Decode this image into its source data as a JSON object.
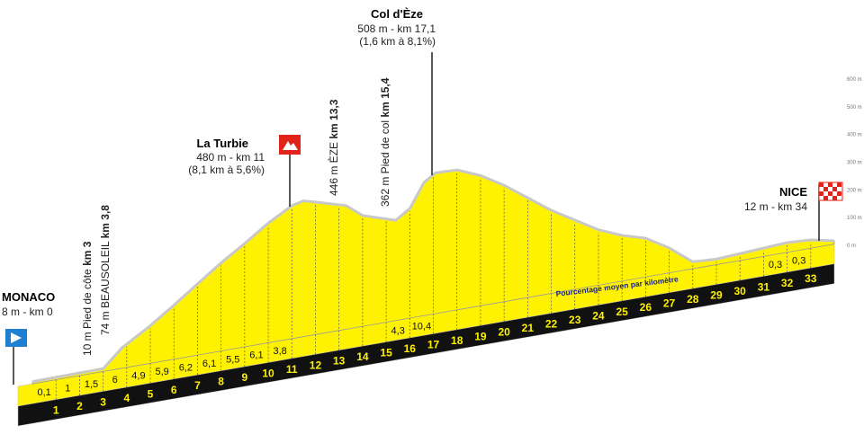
{
  "chart_data": {
    "type": "profile",
    "elevation": {
      "x": [
        0,
        1,
        2,
        3,
        3.8,
        5,
        6,
        7,
        8,
        9,
        10,
        11,
        11.5,
        12,
        13.3,
        14,
        15.4,
        16,
        16.6,
        17.1,
        18,
        19,
        20,
        21,
        22,
        23,
        24,
        25,
        26,
        27,
        28,
        29,
        30,
        31,
        32,
        33,
        34
      ],
      "values": [
        8,
        9,
        10,
        10,
        74,
        136,
        195,
        257,
        318,
        373,
        432,
        480,
        490,
        478,
        446,
        400,
        362,
        395,
        480,
        508,
        505,
        470,
        420,
        360,
        300,
        250,
        200,
        165,
        140,
        90,
        25,
        20,
        25,
        30,
        35,
        30,
        12
      ]
    },
    "color": "#fff200",
    "xlim": [
      0,
      34
    ],
    "xticks": [
      1,
      2,
      3,
      4,
      5,
      6,
      7,
      8,
      9,
      10,
      11,
      12,
      13,
      14,
      15,
      16,
      17,
      18,
      19,
      20,
      21,
      22,
      23,
      24,
      25,
      26,
      27,
      28,
      29,
      30,
      31,
      32,
      33
    ],
    "ylim": [
      0,
      600
    ],
    "yticks": [
      {
        "value": 0,
        "label": "0 m"
      },
      {
        "value": 100,
        "label": "100 m"
      },
      {
        "value": 200,
        "label": "200 m"
      },
      {
        "value": 300,
        "label": "300 m"
      },
      {
        "value": 400,
        "label": "400 m"
      },
      {
        "value": 500,
        "label": "500 m"
      },
      {
        "value": 600,
        "label": "600 m"
      }
    ],
    "gradients": {
      "values": [
        0.1,
        1,
        1.5,
        6,
        4.9,
        5.9,
        6.2,
        6.1,
        5.5,
        6.1,
        3.8,
        null,
        null,
        null,
        null,
        4.3,
        10.4,
        null,
        null,
        null,
        null,
        null,
        null,
        null,
        null,
        null,
        null,
        null,
        null,
        null,
        null,
        0.3,
        0.3
      ],
      "value_labels": [
        "0,1",
        "1",
        "1,5",
        "6",
        "4,9",
        "5,9",
        "6,2",
        "6,1",
        "5,5",
        "6,1",
        "3,8",
        null,
        null,
        null,
        null,
        "4,3",
        "10,4",
        null,
        null,
        null,
        null,
        null,
        null,
        null,
        null,
        null,
        null,
        null,
        null,
        null,
        null,
        "0,3",
        "0,3"
      ]
    },
    "start": {
      "name": "MONACO",
      "detail": "8 m - km 0"
    },
    "finish": {
      "name": "NICE",
      "detail": "12 m - km 34"
    },
    "climbs": [
      {
        "name": "La Turbie",
        "detail": "480 m -  km 11",
        "stats": "(8,1 km à 5,6%)"
      },
      {
        "name": "Col d'Èze",
        "detail": "508 m - km 17,1",
        "stats": "(1,6 km à 8,1%)"
      }
    ],
    "waypoints": [
      {
        "text": "10 m Pied de côte",
        "km": "km 3"
      },
      {
        "text": "74 m BEAUSOLEIL",
        "km": "km 3,8"
      },
      {
        "text": "446 m ÈZE",
        "km": "km 13,3"
      },
      {
        "text": "362 m Pied de col",
        "km": "km 15,4"
      }
    ],
    "note": "Pourcentage moyen par kilomètre"
  }
}
